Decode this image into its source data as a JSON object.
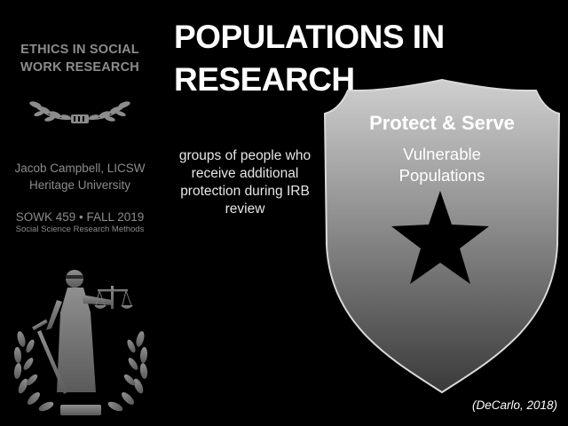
{
  "sidebar": {
    "course_title_line1": "ETHICS IN SOCIAL",
    "course_title_line2": "WORK RESEARCH",
    "wreath_icon": "laurel-wreath-icon",
    "instructor_name": "Jacob Campbell, LICSW",
    "institution": "Heritage University",
    "course_code": "SOWK 459 • FALL 2019",
    "course_name": "Social Science Research Methods",
    "emblem_icon": "lady-justice-icon"
  },
  "slide": {
    "title_line1": "POPULATIONS IN",
    "title_line2": "RESEARCH",
    "definition": "groups of people who receive additional protection during IRB review",
    "badge": {
      "icon": "police-badge-icon",
      "heading": "Protect & Serve",
      "subtitle_line1": "Vulnerable",
      "subtitle_line2": "Populations"
    },
    "citation": "(DeCarlo, 2018)"
  },
  "colors": {
    "background": "#000000",
    "sidebar_text": "#8c8c8c",
    "badge_top": "#c9c9c9",
    "badge_bottom": "#3c3c3c",
    "star": "#000000"
  }
}
